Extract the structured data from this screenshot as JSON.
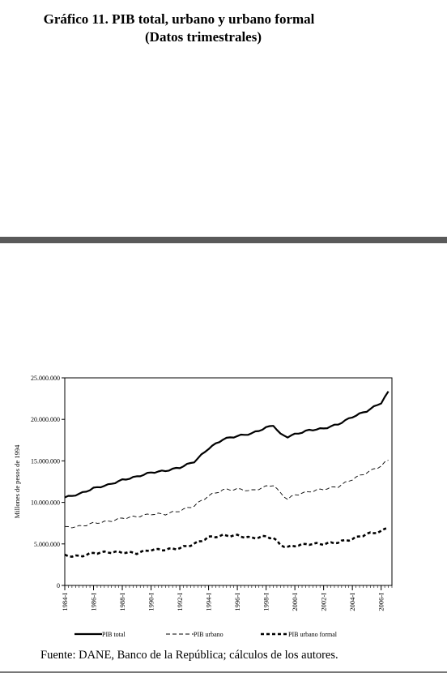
{
  "header": {
    "title": "Gráfico 11. PIB total, urbano y urbano formal",
    "subtitle": "(Datos trimestrales)"
  },
  "footer": {
    "source": "Fuente: DANE, Banco de la República; cálculos de los autores."
  },
  "chart_data": {
    "type": "line",
    "ylabel": "Millones de pesos de 1994",
    "ylim": [
      0,
      25000000
    ],
    "yticks": [
      "0",
      "5.000.000",
      "10.000.000",
      "15.000.000",
      "20.000.000",
      "25.000.000"
    ],
    "xticks": [
      "1984-I",
      "1986-I",
      "1988-I",
      "1990-I",
      "1992-I",
      "1994-I",
      "1996-I",
      "1998-I",
      "2000-I",
      "2002-I",
      "2004-I",
      "2006-I"
    ],
    "legend_position": "bottom",
    "x_knots": [
      1984.0,
      1985.0,
      1986.0,
      1987.0,
      1988.0,
      1989.0,
      1990.0,
      1991.0,
      1992.0,
      1993.0,
      1994.0,
      1995.0,
      1996.0,
      1997.0,
      1998.0,
      1998.5,
      1999.0,
      1999.5,
      2000.0,
      2001.0,
      2002.0,
      2003.0,
      2004.0,
      2005.0,
      2006.0,
      2006.5
    ],
    "series": [
      {
        "name": "PIB total",
        "style": "solid-thick",
        "values": [
          10600000,
          11000000,
          11700000,
          12100000,
          12700000,
          13100000,
          13600000,
          13800000,
          14200000,
          14900000,
          16500000,
          17600000,
          18000000,
          18300000,
          19000000,
          19300000,
          18200000,
          17900000,
          18200000,
          18700000,
          18900000,
          19400000,
          20300000,
          21000000,
          22000000,
          23300000
        ]
      },
      {
        "name": "PIB urbano",
        "style": "dashed",
        "values": [
          7000000,
          7100000,
          7500000,
          7700000,
          8100000,
          8300000,
          8600000,
          8600000,
          9000000,
          9600000,
          10800000,
          11500000,
          11600000,
          11400000,
          11900000,
          12100000,
          11100000,
          10400000,
          10900000,
          11300000,
          11600000,
          11900000,
          12800000,
          13600000,
          14400000,
          15100000
        ]
      },
      {
        "name": "PIB urbano formal",
        "style": "dashed-thick",
        "values": [
          3600000,
          3500000,
          3900000,
          4000000,
          4000000,
          3900000,
          4300000,
          4300000,
          4500000,
          5000000,
          5800000,
          6000000,
          6000000,
          5700000,
          5900000,
          5700000,
          4900000,
          4600000,
          4800000,
          5000000,
          5000000,
          5200000,
          5600000,
          6200000,
          6500000,
          7000000
        ]
      }
    ]
  }
}
